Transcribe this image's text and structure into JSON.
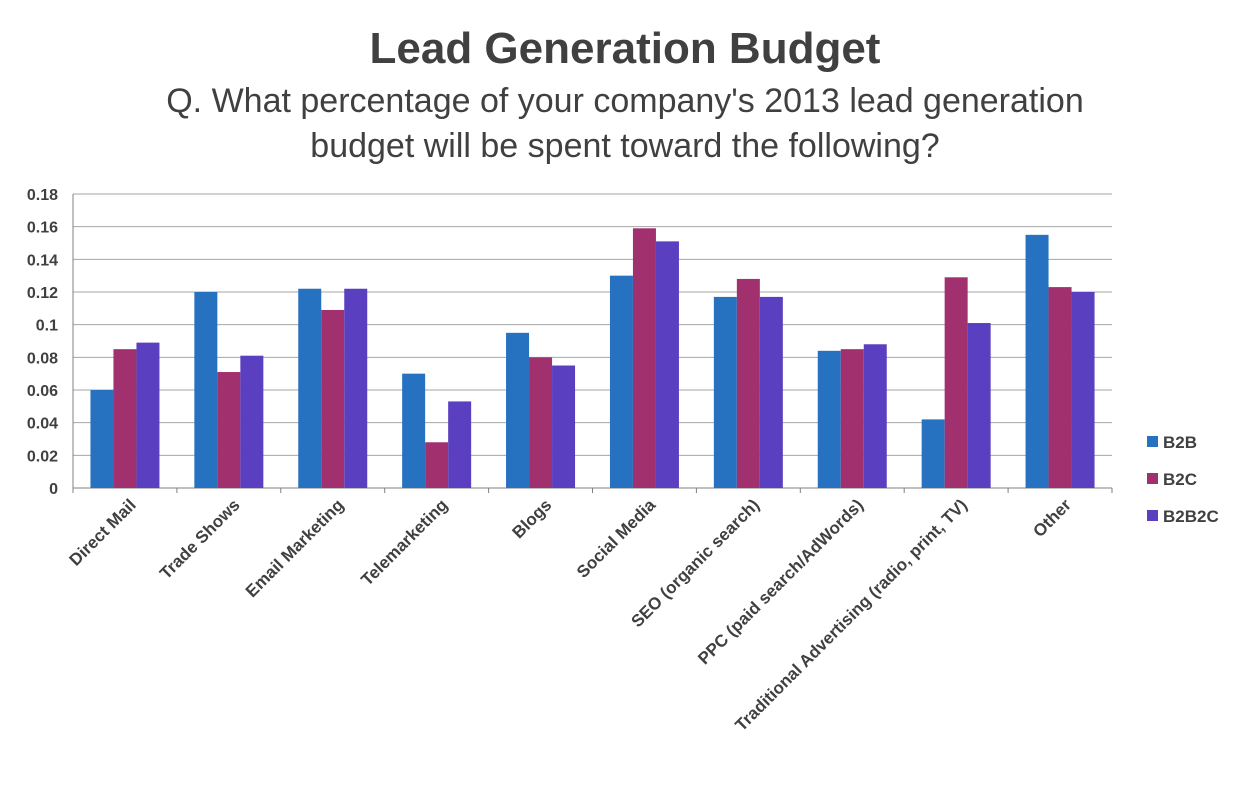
{
  "chart_data": {
    "type": "bar",
    "title": "Lead Generation Budget",
    "subtitle_lines": [
      "Q. What percentage of your company's 2013 lead generation",
      "budget will be spent toward the following?"
    ],
    "categories": [
      "Direct Mail",
      "Trade Shows",
      "Email Marketing",
      "Telemarketing",
      "Blogs",
      "Social Media",
      "SEO (organic search)",
      "PPC (paid search/AdWords)",
      "Traditional Advertising (radio, print, TV)",
      "Other"
    ],
    "series": [
      {
        "name": "B2B",
        "color": "#2672c0",
        "values": [
          0.06,
          0.12,
          0.122,
          0.07,
          0.095,
          0.13,
          0.117,
          0.084,
          0.042,
          0.155
        ]
      },
      {
        "name": "B2C",
        "color": "#a1306e",
        "values": [
          0.085,
          0.071,
          0.109,
          0.028,
          0.08,
          0.159,
          0.128,
          0.085,
          0.129,
          0.123
        ]
      },
      {
        "name": "B2B2C",
        "color": "#5a40c0",
        "values": [
          0.089,
          0.081,
          0.122,
          0.053,
          0.075,
          0.151,
          0.117,
          0.088,
          0.101,
          0.12
        ]
      }
    ],
    "yticks": [
      "0",
      "0.02",
      "0.04",
      "0.06",
      "0.08",
      "0.1",
      "0.12",
      "0.14",
      "0.16",
      "0.18"
    ],
    "ylim": [
      0,
      0.18
    ],
    "grid": true,
    "legend_position": "right",
    "xlabel": "",
    "ylabel": ""
  }
}
